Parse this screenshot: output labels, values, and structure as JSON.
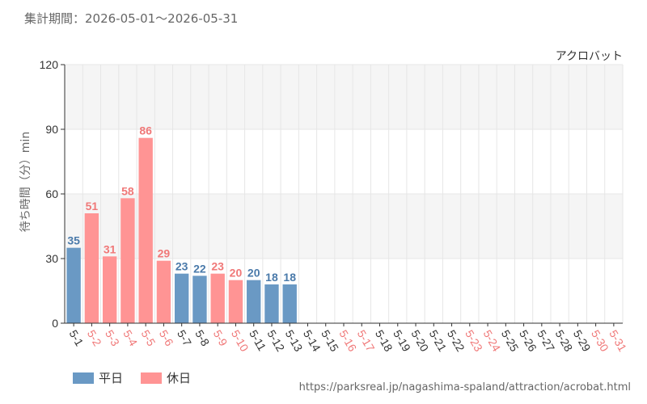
{
  "period_label": "集計期間：2026-05-01～2026-05-31",
  "source_url": "https://parksreal.jp/nagashima-spaland/attraction/acrobat.html",
  "legend": {
    "weekday": {
      "label": "平日",
      "color": "#6a99c4"
    },
    "holiday": {
      "label": "休日",
      "color": "#ff9494"
    }
  },
  "colors": {
    "weekday_label": "#4a7aaa",
    "holiday_label": "#f07878",
    "grid": "#e6e6e6",
    "band": "#f5f5f5",
    "axis": "#333333"
  },
  "chart_data": {
    "type": "bar",
    "title": "アクロバット",
    "xlabel": "",
    "ylabel": "待ち時間（分）min",
    "ylim": [
      0,
      120
    ],
    "yticks": [
      0,
      30,
      60,
      90,
      120
    ],
    "grid": true,
    "categories": [
      "5-1",
      "5-2",
      "5-3",
      "5-4",
      "5-5",
      "5-6",
      "5-7",
      "5-8",
      "5-9",
      "5-10",
      "5-11",
      "5-12",
      "5-13",
      "5-14",
      "5-15",
      "5-16",
      "5-17",
      "5-18",
      "5-19",
      "5-20",
      "5-21",
      "5-22",
      "5-23",
      "5-24",
      "5-25",
      "5-26",
      "5-27",
      "5-28",
      "5-29",
      "5-30",
      "5-31"
    ],
    "day_type": [
      "weekday",
      "holiday",
      "holiday",
      "holiday",
      "holiday",
      "holiday",
      "weekday",
      "weekday",
      "holiday",
      "holiday",
      "weekday",
      "weekday",
      "weekday",
      "weekday",
      "weekday",
      "holiday",
      "holiday",
      "weekday",
      "weekday",
      "weekday",
      "weekday",
      "weekday",
      "holiday",
      "holiday",
      "weekday",
      "weekday",
      "weekday",
      "weekday",
      "weekday",
      "holiday",
      "holiday"
    ],
    "values": [
      35,
      51,
      31,
      58,
      86,
      29,
      23,
      22,
      23,
      20,
      20,
      18,
      18,
      null,
      null,
      null,
      null,
      null,
      null,
      null,
      null,
      null,
      null,
      null,
      null,
      null,
      null,
      null,
      null,
      null,
      null
    ]
  }
}
